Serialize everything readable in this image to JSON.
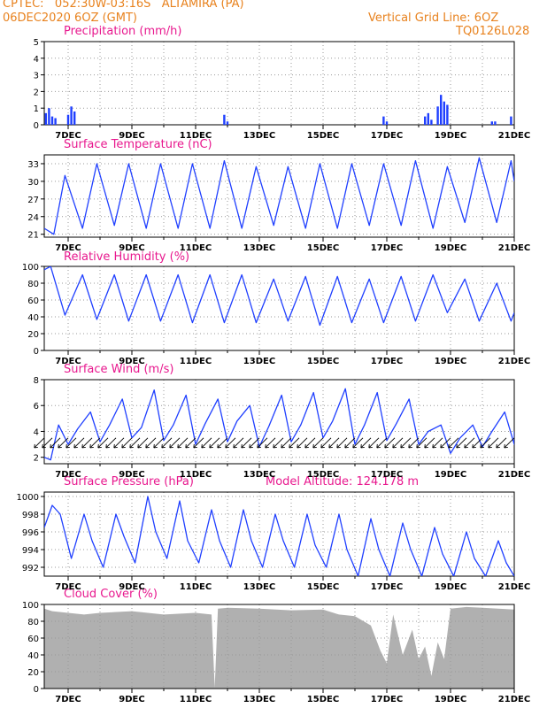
{
  "header": {
    "line1": "CPTEC:   052:30W-03:16S   ALTAMIRA (PA)",
    "line2": "06DEC2020 6OZ (GMT)",
    "grid_note": "Vertical Grid Line: 6OZ",
    "code": "TQ0126L028"
  },
  "x_ticks": [
    "7DEC",
    "9DEC",
    "11DEC",
    "13DEC",
    "15DEC",
    "17DEC",
    "19DEC",
    "21DEC"
  ],
  "colors": {
    "series": "#1f3fff",
    "cloud": "#b0b0b0",
    "title": "#e8188e",
    "header": "#e8821e",
    "arrow": "#000000"
  },
  "chart_data": [
    {
      "type": "bar",
      "title": "Precipitation (mm/h)",
      "ylim": [
        0,
        5
      ],
      "y_ticks": [
        0,
        1,
        2,
        3,
        4,
        5
      ],
      "x": [
        6.3,
        6.4,
        6.5,
        6.6,
        7.0,
        7.1,
        7.2,
        11.9,
        12.0,
        16.9,
        17.0,
        18.2,
        18.3,
        18.4,
        18.6,
        18.7,
        18.8,
        18.9,
        20.3,
        20.4,
        20.9
      ],
      "values": [
        0.7,
        1.0,
        0.5,
        0.4,
        0.6,
        1.1,
        0.8,
        0.6,
        0.2,
        0.5,
        0.2,
        0.5,
        0.7,
        0.3,
        1.1,
        1.8,
        1.4,
        1.2,
        0.2,
        0.2,
        0.5
      ]
    },
    {
      "type": "line",
      "title": "Surface Temperature (nC)",
      "ylim": [
        20.5,
        34.5
      ],
      "y_ticks": [
        21,
        24,
        27,
        30,
        33
      ],
      "x": [
        6.25,
        6.55,
        6.9,
        7.45,
        7.9,
        8.45,
        8.9,
        9.45,
        9.9,
        10.45,
        10.9,
        11.45,
        11.9,
        12.45,
        12.9,
        13.45,
        13.9,
        14.45,
        14.9,
        15.45,
        15.9,
        16.45,
        16.9,
        17.45,
        17.9,
        18.45,
        18.9,
        19.45,
        19.9,
        20.45,
        20.9,
        21.25
      ],
      "values": [
        22,
        21,
        31,
        22,
        33,
        22.5,
        33,
        22,
        33,
        22,
        33,
        22,
        33.5,
        22,
        32.5,
        22.5,
        32.5,
        22,
        33,
        22,
        33,
        22.5,
        33,
        22.5,
        33.5,
        22,
        32.5,
        23,
        34,
        23,
        33.5,
        30
      ]
    },
    {
      "type": "line",
      "title": "Relative Humidity (%)",
      "ylim": [
        0,
        100
      ],
      "y_ticks": [
        0,
        20,
        40,
        60,
        80,
        100
      ],
      "x": [
        6.25,
        6.45,
        6.9,
        7.45,
        7.9,
        8.45,
        8.9,
        9.45,
        9.9,
        10.45,
        10.9,
        11.45,
        11.9,
        12.45,
        12.9,
        13.45,
        13.9,
        14.45,
        14.9,
        15.45,
        15.9,
        16.45,
        16.9,
        17.45,
        17.9,
        18.45,
        18.9,
        19.45,
        19.9,
        20.45,
        20.9,
        21.25
      ],
      "values": [
        96,
        100,
        42,
        90,
        37,
        90,
        35,
        90,
        35,
        90,
        33,
        90,
        33,
        90,
        33,
        85,
        35,
        88,
        30,
        88,
        33,
        85,
        33,
        88,
        35,
        90,
        45,
        85,
        35,
        80,
        35,
        45
      ]
    },
    {
      "type": "line",
      "title": "Surface Wind (m/s)",
      "ylim": [
        1.5,
        8
      ],
      "y_ticks": [
        2,
        4,
        6,
        8
      ],
      "x": [
        6.25,
        6.45,
        6.7,
        7.0,
        7.3,
        7.7,
        8.0,
        8.3,
        8.7,
        9.0,
        9.3,
        9.7,
        10.0,
        10.3,
        10.7,
        11.0,
        11.3,
        11.7,
        12.0,
        12.3,
        12.7,
        13.0,
        13.3,
        13.7,
        14.0,
        14.3,
        14.7,
        15.0,
        15.3,
        15.7,
        16.0,
        16.3,
        16.7,
        17.0,
        17.3,
        17.7,
        18.0,
        18.3,
        18.7,
        19.0,
        19.3,
        19.7,
        20.0,
        20.3,
        20.7,
        21.0,
        21.25
      ],
      "values": [
        2.0,
        1.8,
        4.5,
        3.0,
        4.2,
        5.5,
        3.2,
        4.5,
        6.5,
        3.5,
        4.3,
        7.2,
        3.3,
        4.5,
        6.8,
        3.0,
        4.6,
        6.5,
        3.2,
        4.8,
        6.0,
        2.8,
        4.4,
        6.8,
        3.2,
        4.5,
        7.0,
        3.5,
        4.8,
        7.3,
        3.0,
        4.5,
        7.0,
        3.3,
        4.6,
        6.5,
        3.0,
        4.0,
        4.5,
        2.3,
        3.5,
        4.5,
        2.8,
        4.0,
        5.5,
        3.0,
        4.0
      ],
      "direction_from_deg": 45
    },
    {
      "type": "line",
      "title": "Surface Pressure (hPa)",
      "annotation": "Model Altitude: 124.178 m",
      "ylim": [
        991,
        1000.5
      ],
      "y_ticks": [
        992,
        994,
        996,
        998,
        1000
      ],
      "x": [
        6.25,
        6.5,
        6.75,
        7.1,
        7.5,
        7.75,
        8.1,
        8.5,
        8.75,
        9.1,
        9.5,
        9.75,
        10.1,
        10.5,
        10.75,
        11.1,
        11.5,
        11.75,
        12.1,
        12.5,
        12.75,
        13.1,
        13.5,
        13.75,
        14.1,
        14.5,
        14.75,
        15.1,
        15.5,
        15.75,
        16.1,
        16.5,
        16.75,
        17.1,
        17.5,
        17.75,
        18.1,
        18.5,
        18.75,
        19.1,
        19.5,
        19.75,
        20.1,
        20.5,
        20.75,
        21.1,
        21.25
      ],
      "values": [
        996.5,
        999,
        998,
        993,
        998,
        995,
        992,
        998,
        995.5,
        992.5,
        1000,
        996,
        993,
        999.5,
        995,
        992.5,
        998.5,
        995,
        992,
        998.5,
        995,
        992,
        998,
        995,
        992,
        998,
        994.5,
        992,
        998,
        994,
        991,
        997.5,
        994,
        991,
        997,
        994,
        991,
        996.5,
        993.5,
        991,
        996,
        993,
        991,
        995,
        992.5,
        991,
        991
      ]
    },
    {
      "type": "area",
      "title": "Cloud Cover (%)",
      "ylim": [
        0,
        100
      ],
      "y_ticks": [
        0,
        20,
        40,
        60,
        80,
        100
      ],
      "x": [
        6.25,
        6.5,
        7.0,
        7.5,
        8.0,
        9.0,
        10.0,
        11.0,
        11.5,
        11.6,
        11.7,
        12.0,
        13.0,
        14.0,
        15.0,
        15.5,
        16.0,
        16.5,
        16.8,
        17.0,
        17.2,
        17.5,
        17.8,
        18.0,
        18.2,
        18.4,
        18.6,
        18.8,
        19.0,
        19.5,
        20.0,
        20.5,
        21.0,
        21.25
      ],
      "values": [
        95,
        92,
        90,
        88,
        90,
        92,
        88,
        90,
        88,
        1,
        95,
        96,
        95,
        93,
        94,
        88,
        86,
        75,
        45,
        30,
        88,
        40,
        70,
        35,
        50,
        15,
        55,
        35,
        95,
        97,
        96,
        95,
        94,
        95
      ]
    }
  ]
}
